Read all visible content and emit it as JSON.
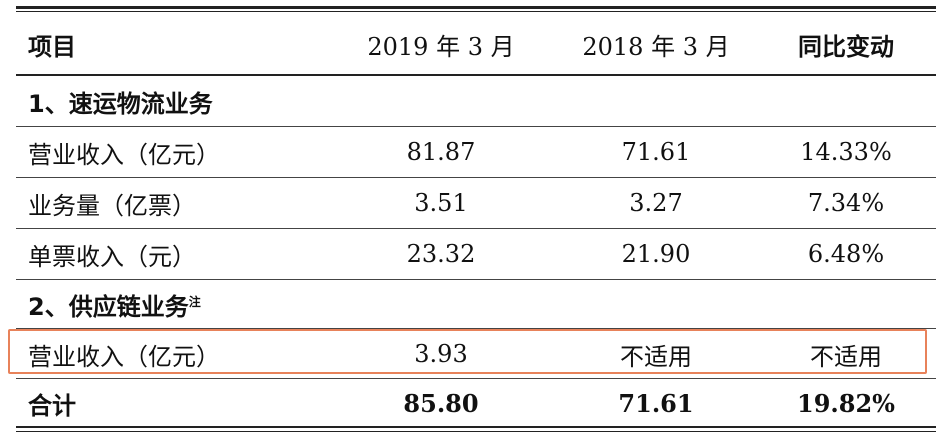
{
  "header": {
    "item": "项目",
    "col1": "2019 年 3 月",
    "col2": "2018 年 3 月",
    "col3": "同比变动"
  },
  "section1": {
    "title": "1、速运物流业务"
  },
  "rows1": [
    {
      "label": "营业收入（亿元）",
      "v2019": "81.87",
      "v2018": "71.61",
      "yoy": "14.33%"
    },
    {
      "label": "业务量（亿票）",
      "v2019": "3.51",
      "v2018": "3.27",
      "yoy": "7.34%"
    },
    {
      "label": "单票收入（元）",
      "v2019": "23.32",
      "v2018": "21.90",
      "yoy": "6.48%"
    }
  ],
  "section2": {
    "title": "2、供应链业务",
    "note": "注"
  },
  "rows2": [
    {
      "label": "营业收入（亿元）",
      "v2019": "3.93",
      "v2018": "不适用",
      "yoy": "不适用"
    }
  ],
  "total": {
    "label": "合计",
    "v2019": "85.80",
    "v2018": "71.61",
    "yoy": "19.82%"
  }
}
